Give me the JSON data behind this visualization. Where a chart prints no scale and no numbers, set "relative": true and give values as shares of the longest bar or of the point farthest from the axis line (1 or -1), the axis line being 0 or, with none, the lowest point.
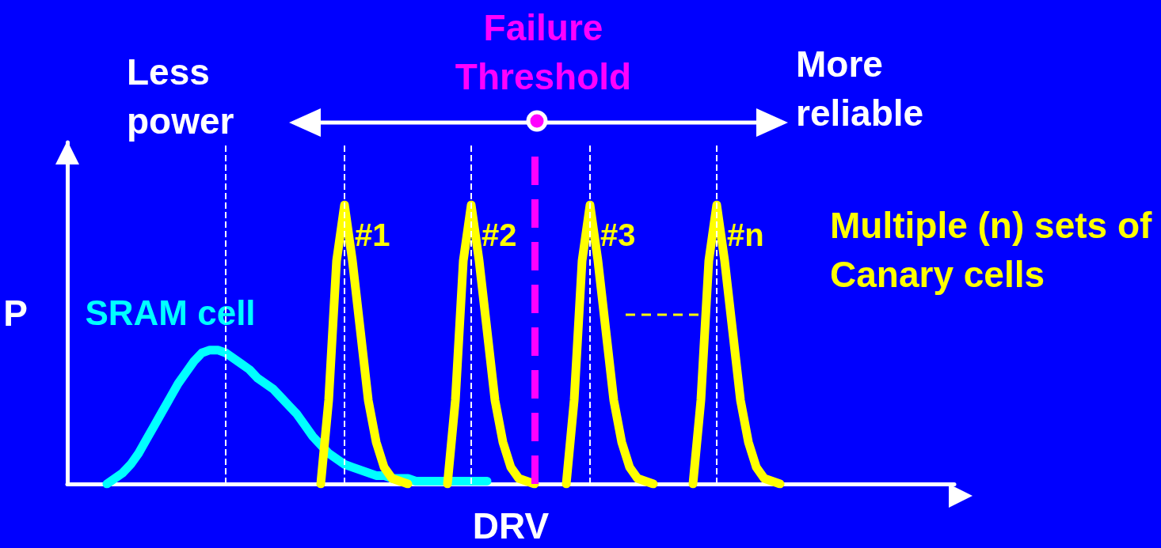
{
  "chart_data": {
    "type": "line",
    "relative": true,
    "xlabel": "DRV",
    "ylabel": "P",
    "legend": false,
    "grid": "x",
    "categories": [
      null,
      null,
      null,
      null,
      null,
      null,
      null,
      null,
      null,
      null,
      null,
      null,
      null,
      null,
      null,
      null,
      null,
      null,
      null,
      null,
      null,
      null,
      null,
      null,
      null,
      null,
      null,
      null,
      null,
      null,
      null,
      null,
      null,
      null,
      null,
      null,
      null,
      null,
      null,
      null,
      null,
      null,
      null,
      null,
      null,
      null,
      null,
      null,
      null,
      null,
      null,
      null,
      null,
      null,
      null,
      null,
      null,
      null,
      null,
      null,
      null,
      null,
      null,
      null,
      null,
      null,
      null,
      null,
      null,
      null,
      null,
      null,
      null,
      null,
      null,
      null,
      null,
      null,
      null,
      null,
      null,
      null,
      null,
      null,
      null,
      null,
      null,
      null,
      null,
      null,
      null,
      null,
      null,
      null,
      null,
      null,
      null,
      null,
      null,
      null,
      null,
      null,
      null,
      null,
      null,
      null,
      null,
      null,
      null,
      null,
      null,
      null,
      null
    ],
    "series": [
      {
        "name": "SRAM cell",
        "color": "#00ffff",
        "values": [
          null,
          null,
          null,
          null,
          null,
          0,
          0.02,
          0.04,
          0.07,
          0.11,
          0.16,
          0.21,
          0.26,
          0.31,
          0.36,
          0.4,
          0.44,
          0.47,
          0.48,
          0.48,
          0.47,
          0.45,
          0.43,
          0.41,
          0.38,
          0.36,
          0.34,
          0.31,
          0.28,
          0.25,
          0.21,
          0.17,
          0.14,
          0.11,
          0.09,
          0.07,
          0.06,
          0.05,
          0.04,
          0.03,
          0.03,
          0.02,
          0.02,
          0.02,
          0.01,
          0.01,
          0.01,
          0.01,
          0.01,
          0.01,
          0.01,
          0.01,
          0.01,
          0.01,
          null,
          null,
          null,
          null,
          null,
          null,
          null,
          null,
          null,
          null,
          null,
          null,
          null,
          null,
          null,
          null,
          null,
          null,
          null,
          null,
          null,
          null,
          null,
          null,
          null,
          null,
          null,
          null,
          null,
          null,
          null,
          null,
          null,
          null,
          null,
          null,
          null,
          null,
          null,
          null,
          null,
          null,
          null,
          null,
          null,
          null,
          null,
          null,
          null,
          null,
          null,
          null,
          null,
          null,
          null,
          null,
          null,
          null,
          null
        ]
      },
      {
        "name": "#1",
        "color": "#ffff00",
        "values": [
          null,
          null,
          null,
          null,
          null,
          null,
          null,
          null,
          null,
          null,
          null,
          null,
          null,
          null,
          null,
          null,
          null,
          null,
          null,
          null,
          null,
          null,
          null,
          null,
          null,
          null,
          null,
          null,
          null,
          null,
          null,
          null,
          0,
          0.3,
          0.8,
          1,
          0.8,
          0.55,
          0.3,
          0.15,
          0.06,
          0.02,
          0.01,
          0,
          null,
          null,
          null,
          null,
          null,
          null,
          null,
          null,
          null,
          null,
          null,
          null,
          null,
          null,
          null,
          null,
          null,
          null,
          null,
          null,
          null,
          null,
          null,
          null,
          null,
          null,
          null,
          null,
          null,
          null,
          null,
          null,
          null,
          null,
          null,
          null,
          null,
          null,
          null,
          null,
          null,
          null,
          null,
          null,
          null,
          null,
          null,
          null,
          null,
          null,
          null,
          null,
          null,
          null,
          null,
          null,
          null,
          null,
          null,
          null,
          null,
          null,
          null,
          null,
          null,
          null,
          null,
          null,
          null
        ]
      },
      {
        "name": "#2",
        "color": "#ffff00",
        "values": [
          null,
          null,
          null,
          null,
          null,
          null,
          null,
          null,
          null,
          null,
          null,
          null,
          null,
          null,
          null,
          null,
          null,
          null,
          null,
          null,
          null,
          null,
          null,
          null,
          null,
          null,
          null,
          null,
          null,
          null,
          null,
          null,
          null,
          null,
          null,
          null,
          null,
          null,
          null,
          null,
          null,
          null,
          null,
          null,
          null,
          null,
          null,
          null,
          0,
          0.3,
          0.8,
          1,
          0.8,
          0.55,
          0.3,
          0.15,
          0.06,
          0.02,
          0.01,
          0,
          null,
          null,
          null,
          null,
          null,
          null,
          null,
          null,
          null,
          null,
          null,
          null,
          null,
          null,
          null,
          null,
          null,
          null,
          null,
          null,
          null,
          null,
          null,
          null,
          null,
          null,
          null,
          null,
          null,
          null,
          null,
          null,
          null,
          null,
          null,
          null,
          null,
          null,
          null,
          null,
          null,
          null,
          null,
          null,
          null,
          null,
          null,
          null,
          null,
          null,
          null,
          null,
          null
        ]
      },
      {
        "name": "#3",
        "color": "#ffff00",
        "values": [
          null,
          null,
          null,
          null,
          null,
          null,
          null,
          null,
          null,
          null,
          null,
          null,
          null,
          null,
          null,
          null,
          null,
          null,
          null,
          null,
          null,
          null,
          null,
          null,
          null,
          null,
          null,
          null,
          null,
          null,
          null,
          null,
          null,
          null,
          null,
          null,
          null,
          null,
          null,
          null,
          null,
          null,
          null,
          null,
          null,
          null,
          null,
          null,
          null,
          null,
          null,
          null,
          null,
          null,
          null,
          null,
          null,
          null,
          null,
          null,
          null,
          null,
          null,
          0,
          0.3,
          0.8,
          1,
          0.8,
          0.55,
          0.3,
          0.15,
          0.06,
          0.02,
          0.01,
          0,
          null,
          null,
          null,
          null,
          null,
          null,
          null,
          null,
          null,
          null,
          null,
          null,
          null,
          null,
          null,
          null,
          null,
          null,
          null,
          null,
          null,
          null,
          null,
          null,
          null,
          null,
          null,
          null,
          null,
          null,
          null,
          null,
          null,
          null,
          null,
          null,
          null,
          null
        ]
      },
      {
        "name": "#n",
        "color": "#ffff00",
        "values": [
          null,
          null,
          null,
          null,
          null,
          null,
          null,
          null,
          null,
          null,
          null,
          null,
          null,
          null,
          null,
          null,
          null,
          null,
          null,
          null,
          null,
          null,
          null,
          null,
          null,
          null,
          null,
          null,
          null,
          null,
          null,
          null,
          null,
          null,
          null,
          null,
          null,
          null,
          null,
          null,
          null,
          null,
          null,
          null,
          null,
          null,
          null,
          null,
          null,
          null,
          null,
          null,
          null,
          null,
          null,
          null,
          null,
          null,
          null,
          null,
          null,
          null,
          null,
          null,
          null,
          null,
          null,
          null,
          null,
          null,
          null,
          null,
          null,
          null,
          null,
          null,
          null,
          null,
          null,
          0,
          0.3,
          0.8,
          1,
          0.8,
          0.55,
          0.3,
          0.15,
          0.06,
          0.02,
          0.01,
          0,
          null,
          null,
          null,
          null,
          null,
          null,
          null,
          null,
          null,
          null,
          null,
          null,
          null,
          null,
          null,
          null,
          null,
          null,
          null,
          null,
          null,
          null
        ]
      }
    ],
    "annotations": [
      "Less power",
      "More reliable",
      "Multiple (n) sets of Canary cells",
      "Failure Threshold"
    ]
  }
}
